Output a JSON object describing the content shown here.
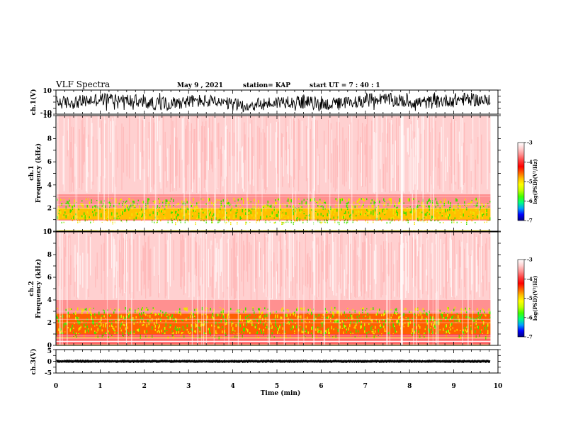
{
  "header": {
    "title": "VLF Spectra",
    "date": "May 9 , 2021",
    "station": "station= KAP",
    "start": "start  UT =   7 : 40 : 1"
  },
  "colors": {
    "colorbar": [
      "#000080",
      "#0000ff",
      "#00a0ff",
      "#00ff80",
      "#40ff00",
      "#c0ff00",
      "#ffff00",
      "#ffc000",
      "#ff6000",
      "#ff0000",
      "#ff4040",
      "#ff9090",
      "#ffd0d0",
      "#ffffff"
    ],
    "spectrum_main": "#ff2a2a",
    "spectrum_light": "#ffb0b0",
    "band_yellow": "#f2e400",
    "band_green": "#46e000",
    "trace": "#000000"
  },
  "chart_data": [
    {
      "type": "line",
      "name": "waveform-ch1",
      "ylabel": "ch.1(V)",
      "ylim": [
        -10,
        10
      ],
      "y_tick_labels": [
        "10",
        "-10"
      ],
      "xlim": [
        0,
        10
      ],
      "series": [
        {
          "values_range": [
            -8,
            8
          ]
        }
      ]
    },
    {
      "type": "heatmap",
      "name": "spectrogram-ch1",
      "ylabel": "ch.1",
      "ylabel2": "Frequency (kHz)",
      "xlim": [
        0,
        10
      ],
      "ylim": [
        0,
        10
      ],
      "y_ticks": [
        0,
        2,
        4,
        6,
        8,
        10
      ],
      "data_end_min": 9.83,
      "colorbar": {
        "label": "log(PSD)(V²/Hz)",
        "range": [
          -7,
          -3
        ],
        "ticks": [
          "-3",
          "-4",
          "-5",
          "-6",
          "-7"
        ]
      },
      "bands": [
        {
          "f_low": 0,
          "f_high": 1.0,
          "level": -3.2
        },
        {
          "f_low": 1.0,
          "f_high": 2.0,
          "level": -4.8
        },
        {
          "f_low": 2.0,
          "f_high": 3.2,
          "level": -3.8
        },
        {
          "f_low": 3.2,
          "f_high": 10,
          "level": -3.3
        }
      ]
    },
    {
      "type": "heatmap",
      "name": "spectrogram-ch2",
      "ylabel": "ch.2",
      "ylabel2": "Frequency (kHz)",
      "xlim": [
        0,
        10
      ],
      "ylim": [
        0,
        10
      ],
      "y_ticks": [
        0,
        2,
        4,
        6,
        8,
        10
      ],
      "data_end_min": 9.83,
      "colorbar": {
        "label": "log(PSD)(V²/Hz)",
        "range": [
          -7,
          -3
        ],
        "ticks": [
          "-3",
          "-4",
          "-5",
          "-6",
          "-7"
        ]
      },
      "bands": [
        {
          "f_low": 0,
          "f_high": 1.0,
          "level": -3.6
        },
        {
          "f_low": 1.0,
          "f_high": 2.8,
          "level": -4.6
        },
        {
          "f_low": 2.8,
          "f_high": 4.0,
          "level": -3.6
        },
        {
          "f_low": 4.0,
          "f_high": 10,
          "level": -3.3
        }
      ]
    },
    {
      "type": "line",
      "name": "waveform-ch3",
      "ylabel": "ch.3(V)",
      "xlabel": "Time (min)",
      "ylim": [
        -5,
        5
      ],
      "y_tick_labels": [
        "5",
        "0",
        "-5"
      ],
      "xlim": [
        0,
        10
      ],
      "x_ticks": [
        0,
        1,
        2,
        3,
        4,
        5,
        6,
        7,
        8,
        9,
        10
      ],
      "series": [
        {
          "values_range": [
            -0.7,
            0.7
          ]
        }
      ]
    }
  ]
}
